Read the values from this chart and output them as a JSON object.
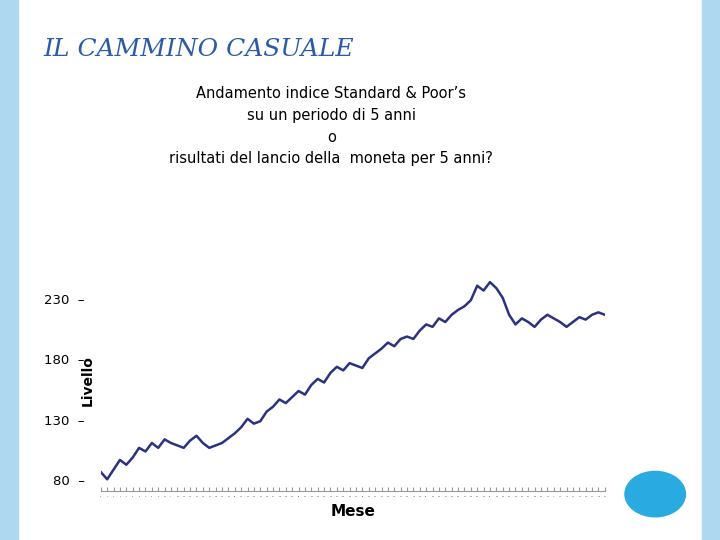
{
  "title_main": "IL CAMMINO CASUALE",
  "subtitle_line1": "Andamento indice Standard & Poor’s",
  "subtitle_line2": "su un periodo di 5 anni",
  "subtitle_line3": "o",
  "subtitle_line4": "risultati del lancio della  moneta per 5 anni?",
  "xlabel": "Mese",
  "ylabel": "Livello",
  "yticks": [
    80,
    130,
    180,
    230
  ],
  "ylim": [
    72,
    255
  ],
  "line_color": "#2B3280",
  "line_width": 1.8,
  "bg_color": "#FFFFFF",
  "border_color": "#ADD8F0",
  "title_color": "#2B5BA8",
  "subtitle_color": "#000000",
  "circle_color": "#29ABE2",
  "y_values": [
    88,
    82,
    90,
    98,
    94,
    100,
    108,
    105,
    112,
    108,
    115,
    112,
    110,
    108,
    114,
    118,
    112,
    108,
    110,
    112,
    116,
    120,
    125,
    132,
    128,
    130,
    138,
    142,
    148,
    145,
    150,
    155,
    152,
    160,
    165,
    162,
    170,
    175,
    172,
    178,
    176,
    174,
    182,
    186,
    190,
    195,
    192,
    198,
    200,
    198,
    205,
    210,
    208,
    215,
    212,
    218,
    222,
    225,
    230,
    242,
    238,
    245,
    240,
    232,
    218,
    210,
    215,
    212,
    208,
    214,
    218,
    215,
    212,
    208,
    212,
    216,
    214,
    218,
    220,
    218
  ]
}
